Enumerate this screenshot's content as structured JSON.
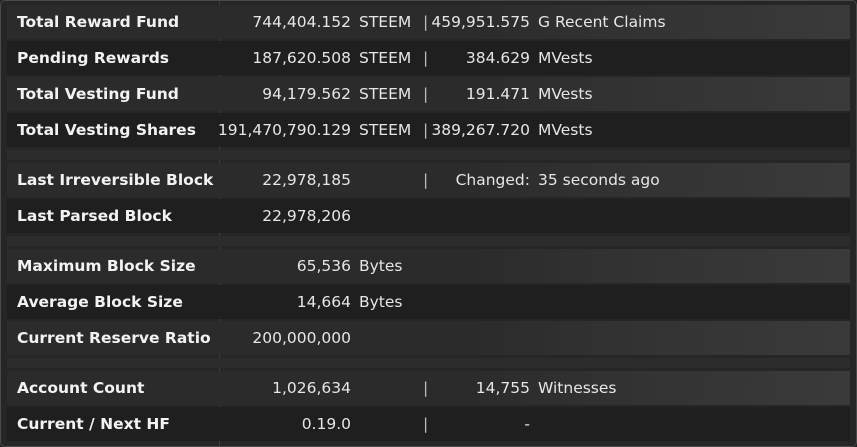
{
  "rows": [
    {
      "label": "Total Reward Fund",
      "value": "744,404.152",
      "unit": "STEEM",
      "sep": "|",
      "value2": "459,951.575",
      "unit2": "G  Recent Claims"
    },
    {
      "label": "Pending Rewards",
      "value": "187,620.508",
      "unit": "STEEM",
      "sep": "|",
      "value2": "384.629",
      "unit2": "MVests"
    },
    {
      "label": "Total Vesting Fund",
      "value": "94,179.562",
      "unit": "STEEM",
      "sep": "|",
      "value2": "191.471",
      "unit2": "MVests"
    },
    {
      "label": "Total Vesting Shares",
      "value": "191,470,790.129",
      "unit": "STEEM",
      "sep": "|",
      "value2": "389,267.720",
      "unit2": "MVests"
    },
    {
      "label": "Last Irreversible Block",
      "value": "22,978,185",
      "unit": "",
      "sep": "|",
      "value2": "Changed:",
      "unit2": "35 seconds ago"
    },
    {
      "label": "Last Parsed Block",
      "value": "22,978,206",
      "unit": "",
      "sep": "",
      "value2": "",
      "unit2": ""
    },
    {
      "label": "Maximum Block Size",
      "value": "65,536",
      "unit": "Bytes",
      "sep": "",
      "value2": "",
      "unit2": ""
    },
    {
      "label": "Average Block Size",
      "value": "14,664",
      "unit": "Bytes",
      "sep": "",
      "value2": "",
      "unit2": ""
    },
    {
      "label": "Current Reserve Ratio",
      "value": "200,000,000",
      "unit": "",
      "sep": "",
      "value2": "",
      "unit2": ""
    },
    {
      "label": "Account Count",
      "value": "1,026,634",
      "unit": "",
      "sep": "|",
      "value2": "14,755",
      "unit2": "Witnesses"
    },
    {
      "label": "Current / Next HF",
      "value": "0.19.0",
      "unit": "",
      "sep": "|",
      "value2": "-",
      "unit2": ""
    }
  ]
}
